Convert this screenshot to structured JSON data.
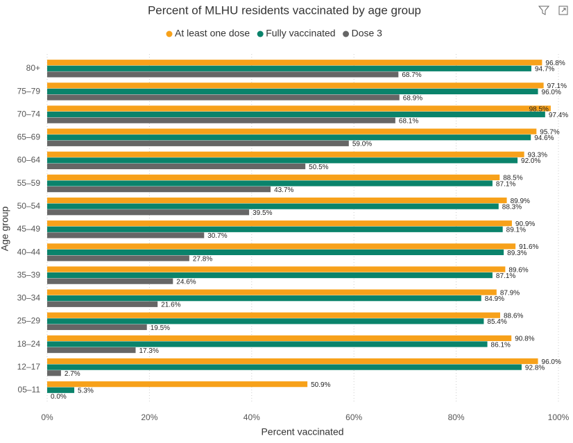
{
  "chart_data": {
    "type": "hbar",
    "title": "Percent of MLHU residents vaccinated by age group",
    "x_label": "Percent vaccinated",
    "y_label": "Age group",
    "categories": [
      "80+",
      "75–79",
      "70–74",
      "65–69",
      "60–64",
      "55–59",
      "50–54",
      "45–49",
      "40–44",
      "35–39",
      "30–34",
      "25–29",
      "18–24",
      "12–17",
      "05–11"
    ],
    "series": [
      {
        "name": "At least one dose",
        "color": "#f7a11a",
        "values": [
          96.8,
          97.1,
          98.5,
          95.7,
          93.3,
          88.5,
          89.9,
          90.9,
          91.6,
          89.6,
          87.9,
          88.6,
          90.8,
          96.0,
          50.9
        ],
        "value_labels": [
          "96.8%",
          "97.1%",
          "98.5%",
          "95.7%",
          "93.3%",
          "88.5%",
          "89.9%",
          "90.9%",
          "91.6%",
          "89.6%",
          "87.9%",
          "88.6%",
          "90.8%",
          "96.0%",
          "50.9%"
        ]
      },
      {
        "name": "Fully vaccinated",
        "color": "#0a836b",
        "values": [
          94.7,
          96.0,
          97.4,
          94.6,
          92.0,
          87.1,
          88.3,
          89.1,
          89.3,
          87.1,
          84.9,
          85.4,
          86.1,
          92.8,
          5.3
        ],
        "value_labels": [
          "94.7%",
          "96.0%",
          "97.4%",
          "94.6%",
          "92.0%",
          "87.1%",
          "88.3%",
          "89.1%",
          "89.3%",
          "87.1%",
          "84.9%",
          "85.4%",
          "86.1%",
          "92.8%",
          "5.3%"
        ]
      },
      {
        "name": "Dose 3",
        "color": "#666666",
        "values": [
          68.7,
          68.9,
          68.1,
          59.0,
          50.5,
          43.7,
          39.5,
          30.7,
          27.8,
          24.6,
          21.6,
          19.5,
          17.3,
          2.7,
          0
        ],
        "value_labels": [
          "68.7%",
          "68.9%",
          "68.1%",
          "59.0%",
          "50.5%",
          "43.7%",
          "39.5%",
          "30.7%",
          "27.8%",
          "24.6%",
          "21.6%",
          "19.5%",
          "17.3%",
          "2.7%",
          "0.0%"
        ]
      }
    ],
    "xlim": [
      0,
      100
    ],
    "xticks": [
      {
        "value": 0,
        "label": "0%"
      },
      {
        "value": 20,
        "label": "20%"
      },
      {
        "value": 40,
        "label": "40%"
      },
      {
        "value": 60,
        "label": "60%"
      },
      {
        "value": 80,
        "label": "80%"
      },
      {
        "value": 100,
        "label": "100%"
      }
    ],
    "grid": true,
    "legend": "top"
  }
}
